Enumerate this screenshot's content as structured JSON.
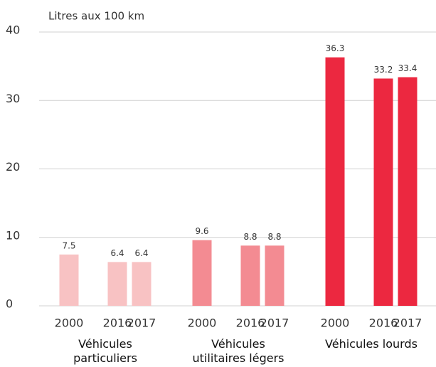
{
  "chart_data": {
    "type": "bar",
    "y_label": "Litres aux 100 km",
    "ylim": [
      0,
      40
    ],
    "yticks": [
      0,
      10,
      20,
      30,
      40
    ],
    "grid": true,
    "groups": [
      {
        "name": "Véhicules particuliers",
        "color": "#f8c2c3",
        "categories": [
          "2000",
          "2016",
          "2017"
        ],
        "values": [
          7.5,
          6.4,
          6.4
        ]
      },
      {
        "name": "Véhicules utilitaires légers",
        "color": "#f38b92",
        "categories": [
          "2000",
          "2016",
          "2017"
        ],
        "values": [
          9.6,
          8.8,
          8.8
        ]
      },
      {
        "name": "Véhicules lourds",
        "color": "#ec2840",
        "categories": [
          "2000",
          "2016",
          "2017"
        ],
        "values": [
          36.3,
          33.2,
          33.4
        ]
      }
    ]
  }
}
